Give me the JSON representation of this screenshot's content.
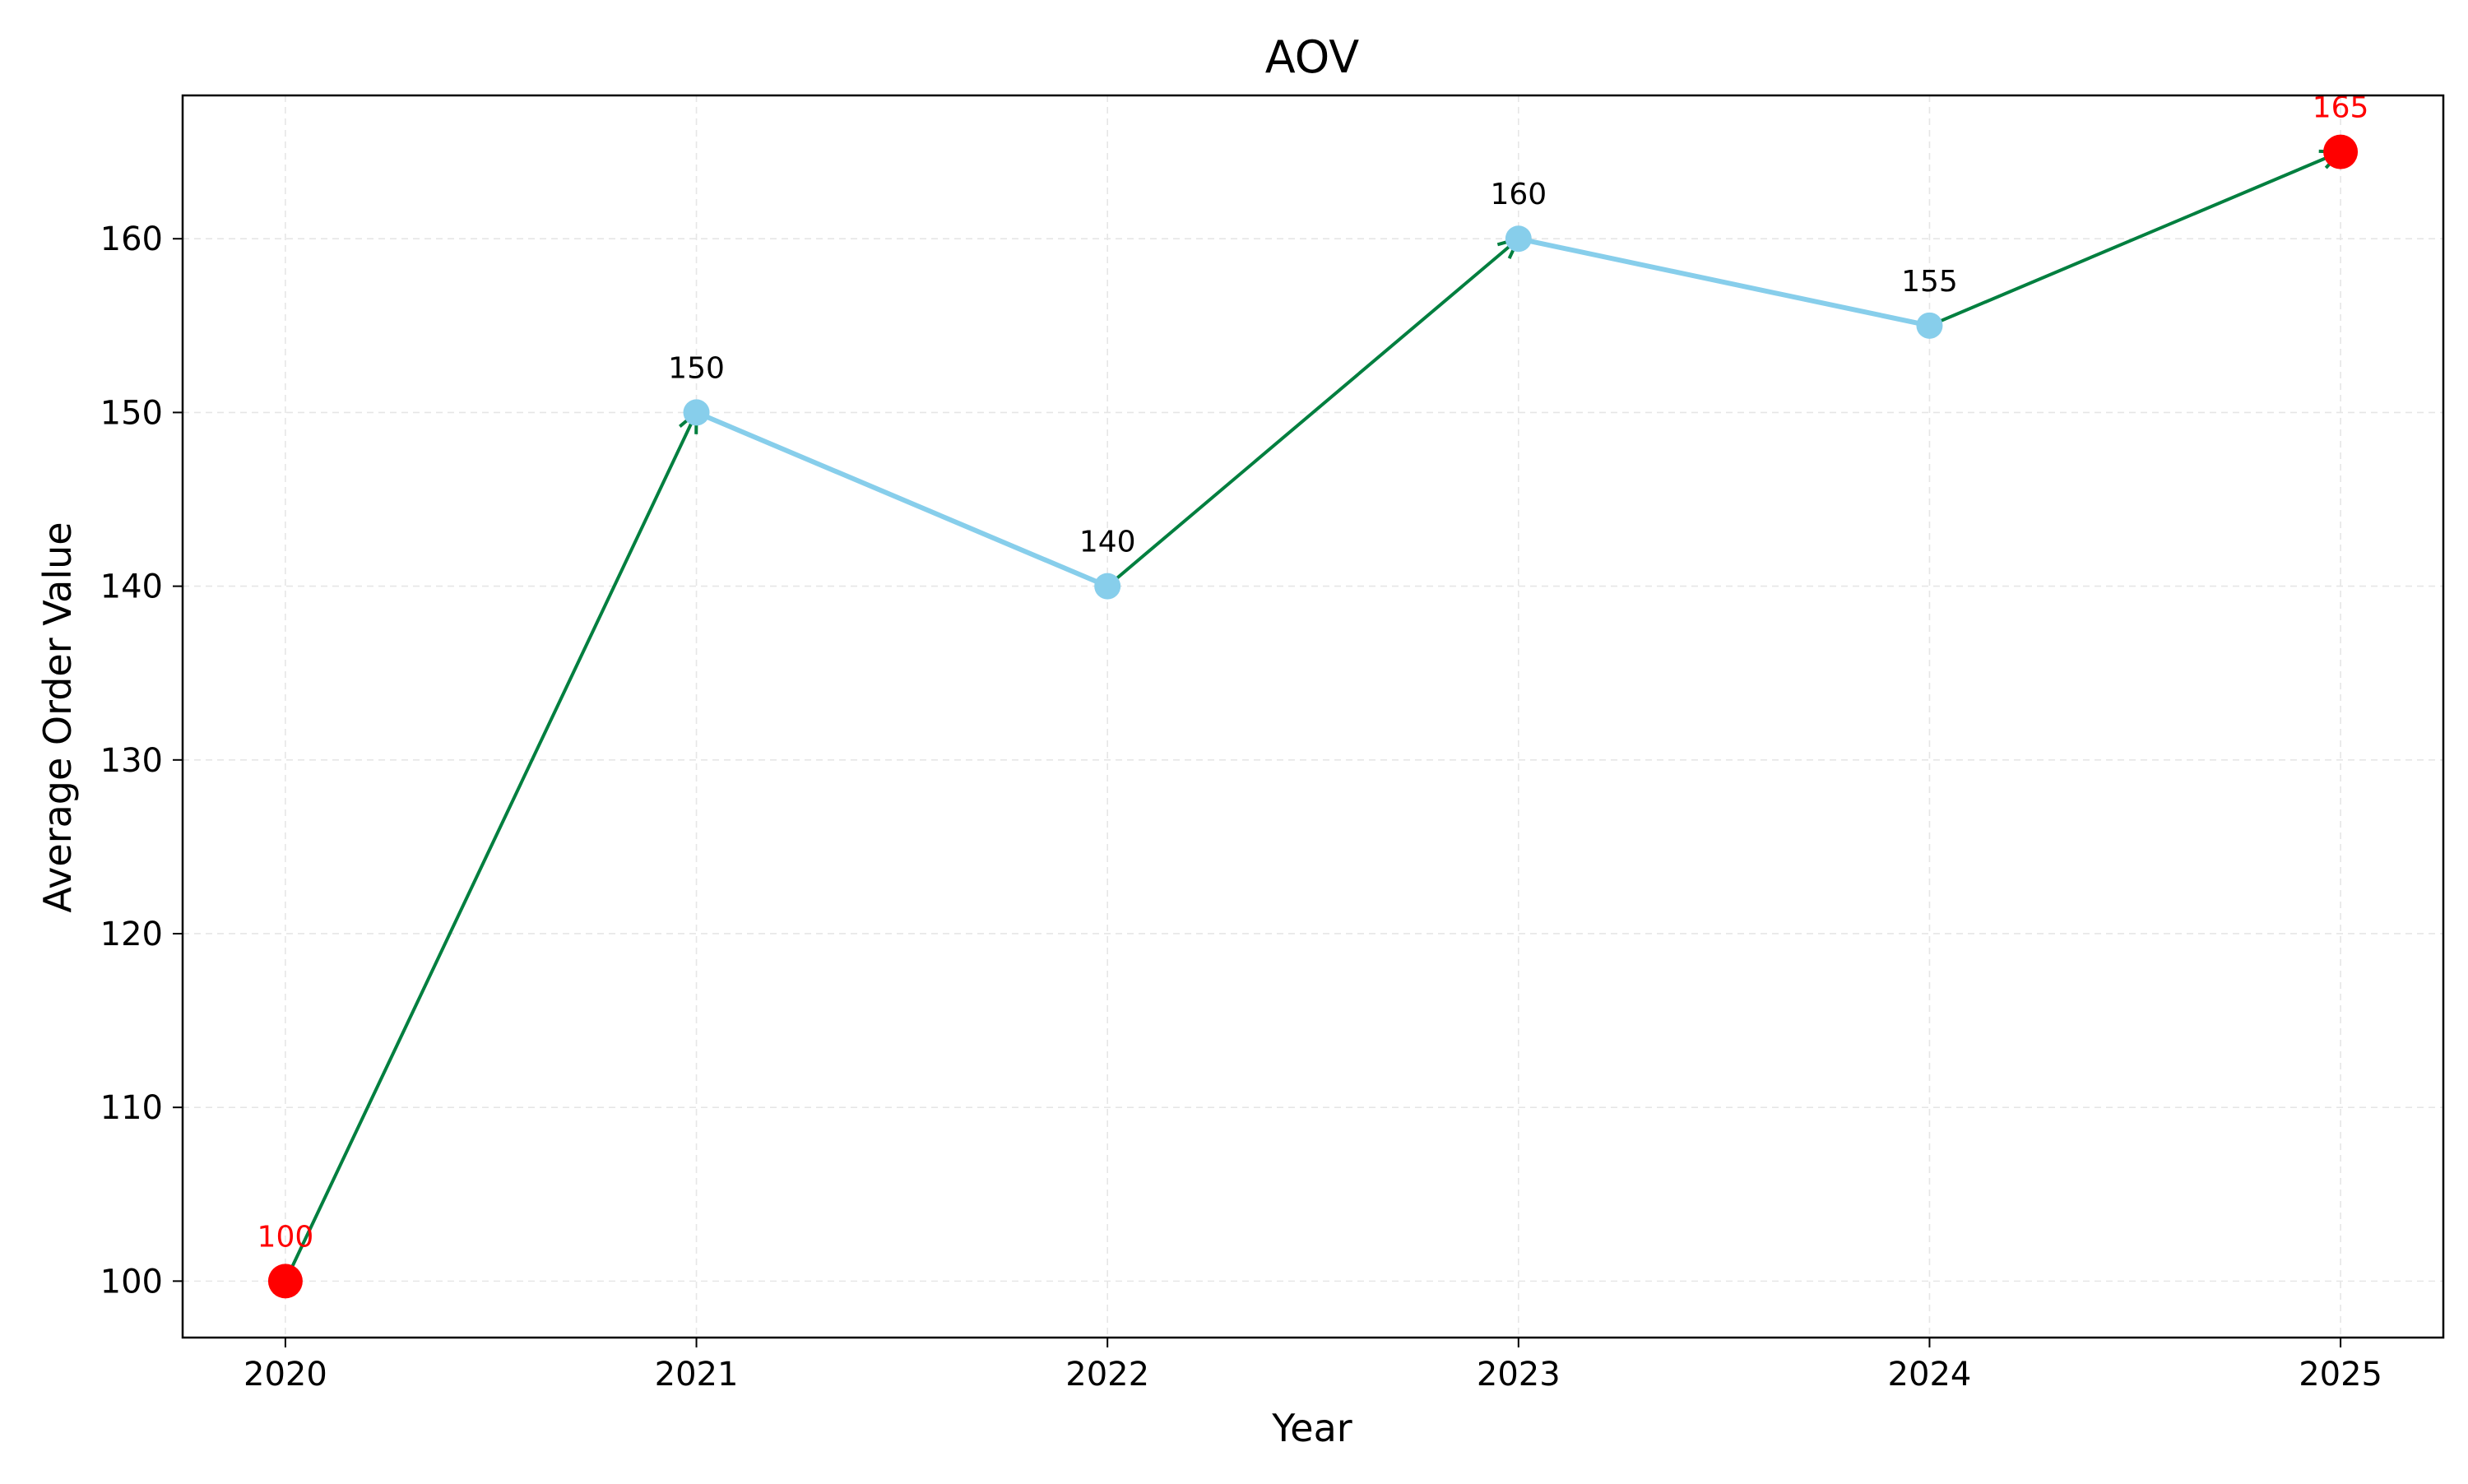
{
  "chart_data": {
    "type": "line",
    "title": "AOV",
    "xlabel": "Year",
    "ylabel": "Average Order Value",
    "x": [
      2020,
      2021,
      2022,
      2023,
      2024,
      2025
    ],
    "values": [
      100,
      150,
      140,
      160,
      155,
      165
    ],
    "data_labels": [
      "100",
      "150",
      "140",
      "160",
      "155",
      "165"
    ],
    "highlighted_points": [
      2020,
      2025
    ],
    "increase_arrows": [
      {
        "from": 2020,
        "to": 2021
      },
      {
        "from": 2022,
        "to": 2023
      },
      {
        "from": 2024,
        "to": 2025
      }
    ],
    "xticks": [
      "2020",
      "2021",
      "2022",
      "2023",
      "2024",
      "2025"
    ],
    "yticks": [
      "100",
      "110",
      "120",
      "130",
      "140",
      "150",
      "160"
    ],
    "ytick_values": [
      100,
      110,
      120,
      130,
      140,
      150,
      160
    ],
    "xlim": [
      2019.75,
      2025.25
    ],
    "ylim": [
      96.75,
      168.25
    ],
    "grid": true,
    "legend": false,
    "colors": {
      "line": "#87CEEB",
      "point": "#87CEEB",
      "highlight": "#FF0000",
      "arrow": "#007F3F",
      "label": "#000000",
      "highlight_label": "#FF0000",
      "grid": "#E6E6E6"
    }
  }
}
